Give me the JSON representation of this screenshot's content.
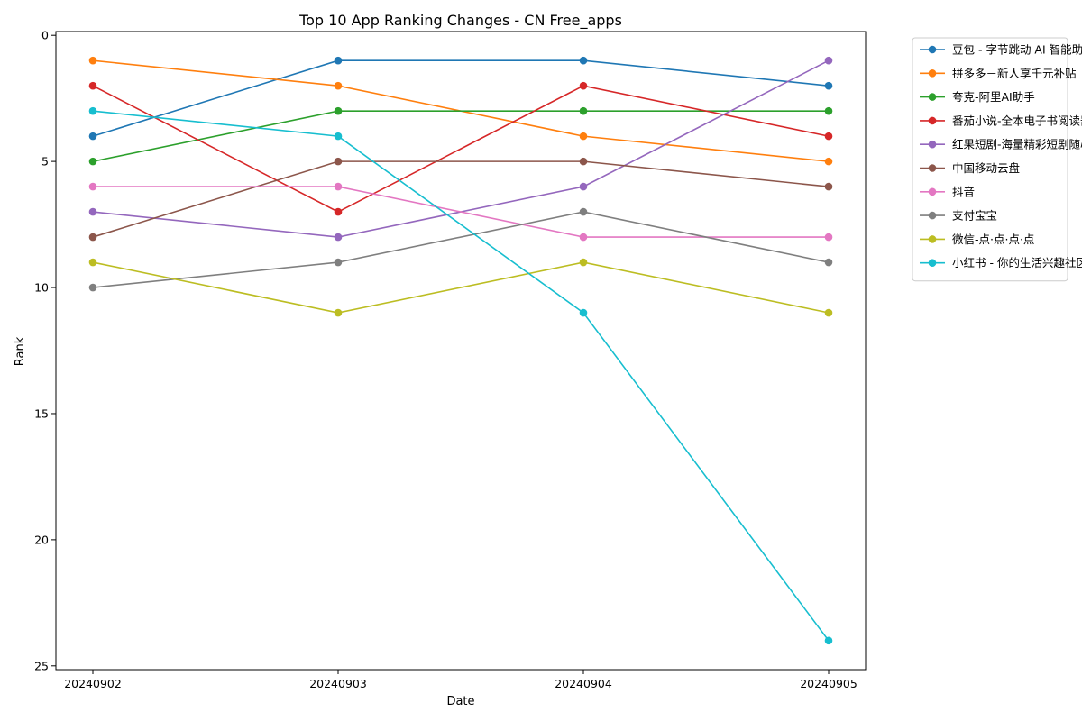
{
  "chart_data": {
    "type": "line",
    "title": "Top 10 App Ranking Changes - CN Free_apps",
    "xlabel": "Date",
    "ylabel": "Rank",
    "x": [
      "20240902",
      "20240903",
      "20240904",
      "20240905"
    ],
    "ylim": [
      25,
      0
    ],
    "y_inverted": true,
    "yticks": [
      0,
      5,
      10,
      15,
      20,
      25
    ],
    "grid": false,
    "legend_position": "outside-top-right",
    "series": [
      {
        "name": "豆包 - 字节跳动 AI 智能助手",
        "color": "#1f77b4",
        "values": [
          4,
          1,
          1,
          2
        ]
      },
      {
        "name": "拼多多－新人享千元补贴",
        "color": "#ff7f0e",
        "values": [
          1,
          2,
          4,
          5
        ]
      },
      {
        "name": "夸克-阿里AI助手",
        "color": "#2ca02c",
        "values": [
          5,
          3,
          3,
          3
        ]
      },
      {
        "name": "番茄小说-全本电子书阅读器合集",
        "color": "#d62728",
        "values": [
          2,
          7,
          2,
          4
        ]
      },
      {
        "name": "红果短剧-海量精彩短剧随心看",
        "color": "#9467bd",
        "values": [
          7,
          8,
          6,
          1
        ]
      },
      {
        "name": "中国移动云盘",
        "color": "#8c564b",
        "values": [
          8,
          5,
          5,
          6
        ]
      },
      {
        "name": "抖音",
        "color": "#e377c2",
        "values": [
          6,
          6,
          8,
          8
        ]
      },
      {
        "name": "支付宝宝",
        "color": "#7f7f7f",
        "values": [
          10,
          9,
          7,
          9
        ]
      },
      {
        "name": "微信-点·点·点·点",
        "color": "#bcbd22",
        "values": [
          9,
          11,
          9,
          11
        ]
      },
      {
        "name": "小红书 - 你的生活兴趣社区指南",
        "color": "#17becf",
        "values": [
          3,
          4,
          11,
          24
        ]
      }
    ]
  }
}
